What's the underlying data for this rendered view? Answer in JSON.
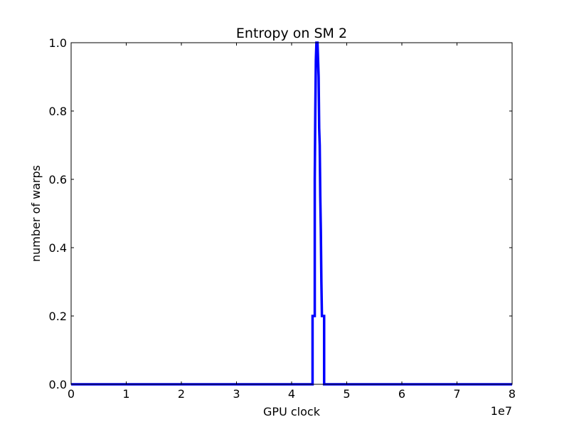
{
  "chart_data": {
    "type": "line",
    "title": "Entropy on SM 2",
    "xlabel": "GPU clock",
    "ylabel": "number of warps",
    "x_offset_label": "1e7",
    "xlim": [
      0,
      8
    ],
    "ylim": [
      0,
      1.0
    ],
    "x_ticks": [
      0,
      1,
      2,
      3,
      4,
      5,
      6,
      7,
      8
    ],
    "x_tick_labels": [
      "0",
      "1",
      "2",
      "3",
      "4",
      "5",
      "6",
      "7",
      "8"
    ],
    "y_ticks": [
      0.0,
      0.2,
      0.4,
      0.6,
      0.8,
      1.0
    ],
    "y_tick_labels": [
      "0.0",
      "0.2",
      "0.4",
      "0.6",
      "0.8",
      "1.0"
    ],
    "grid": false,
    "series": [
      {
        "color": "#0000ff",
        "x": [
          0,
          4.38,
          4.38,
          4.42,
          4.42,
          4.43,
          4.44,
          4.45,
          4.46,
          4.47,
          4.48,
          4.49,
          4.5,
          4.51,
          4.52,
          4.53,
          4.54,
          4.55,
          4.55,
          4.59,
          4.59,
          8
        ],
        "y": [
          0,
          0,
          0.2,
          0.2,
          0.6,
          0.8,
          0.95,
          1.0,
          1.0,
          1.0,
          0.95,
          0.9,
          0.75,
          0.7,
          0.55,
          0.45,
          0.3,
          0.2,
          0.2,
          0.2,
          0,
          0
        ]
      }
    ]
  }
}
